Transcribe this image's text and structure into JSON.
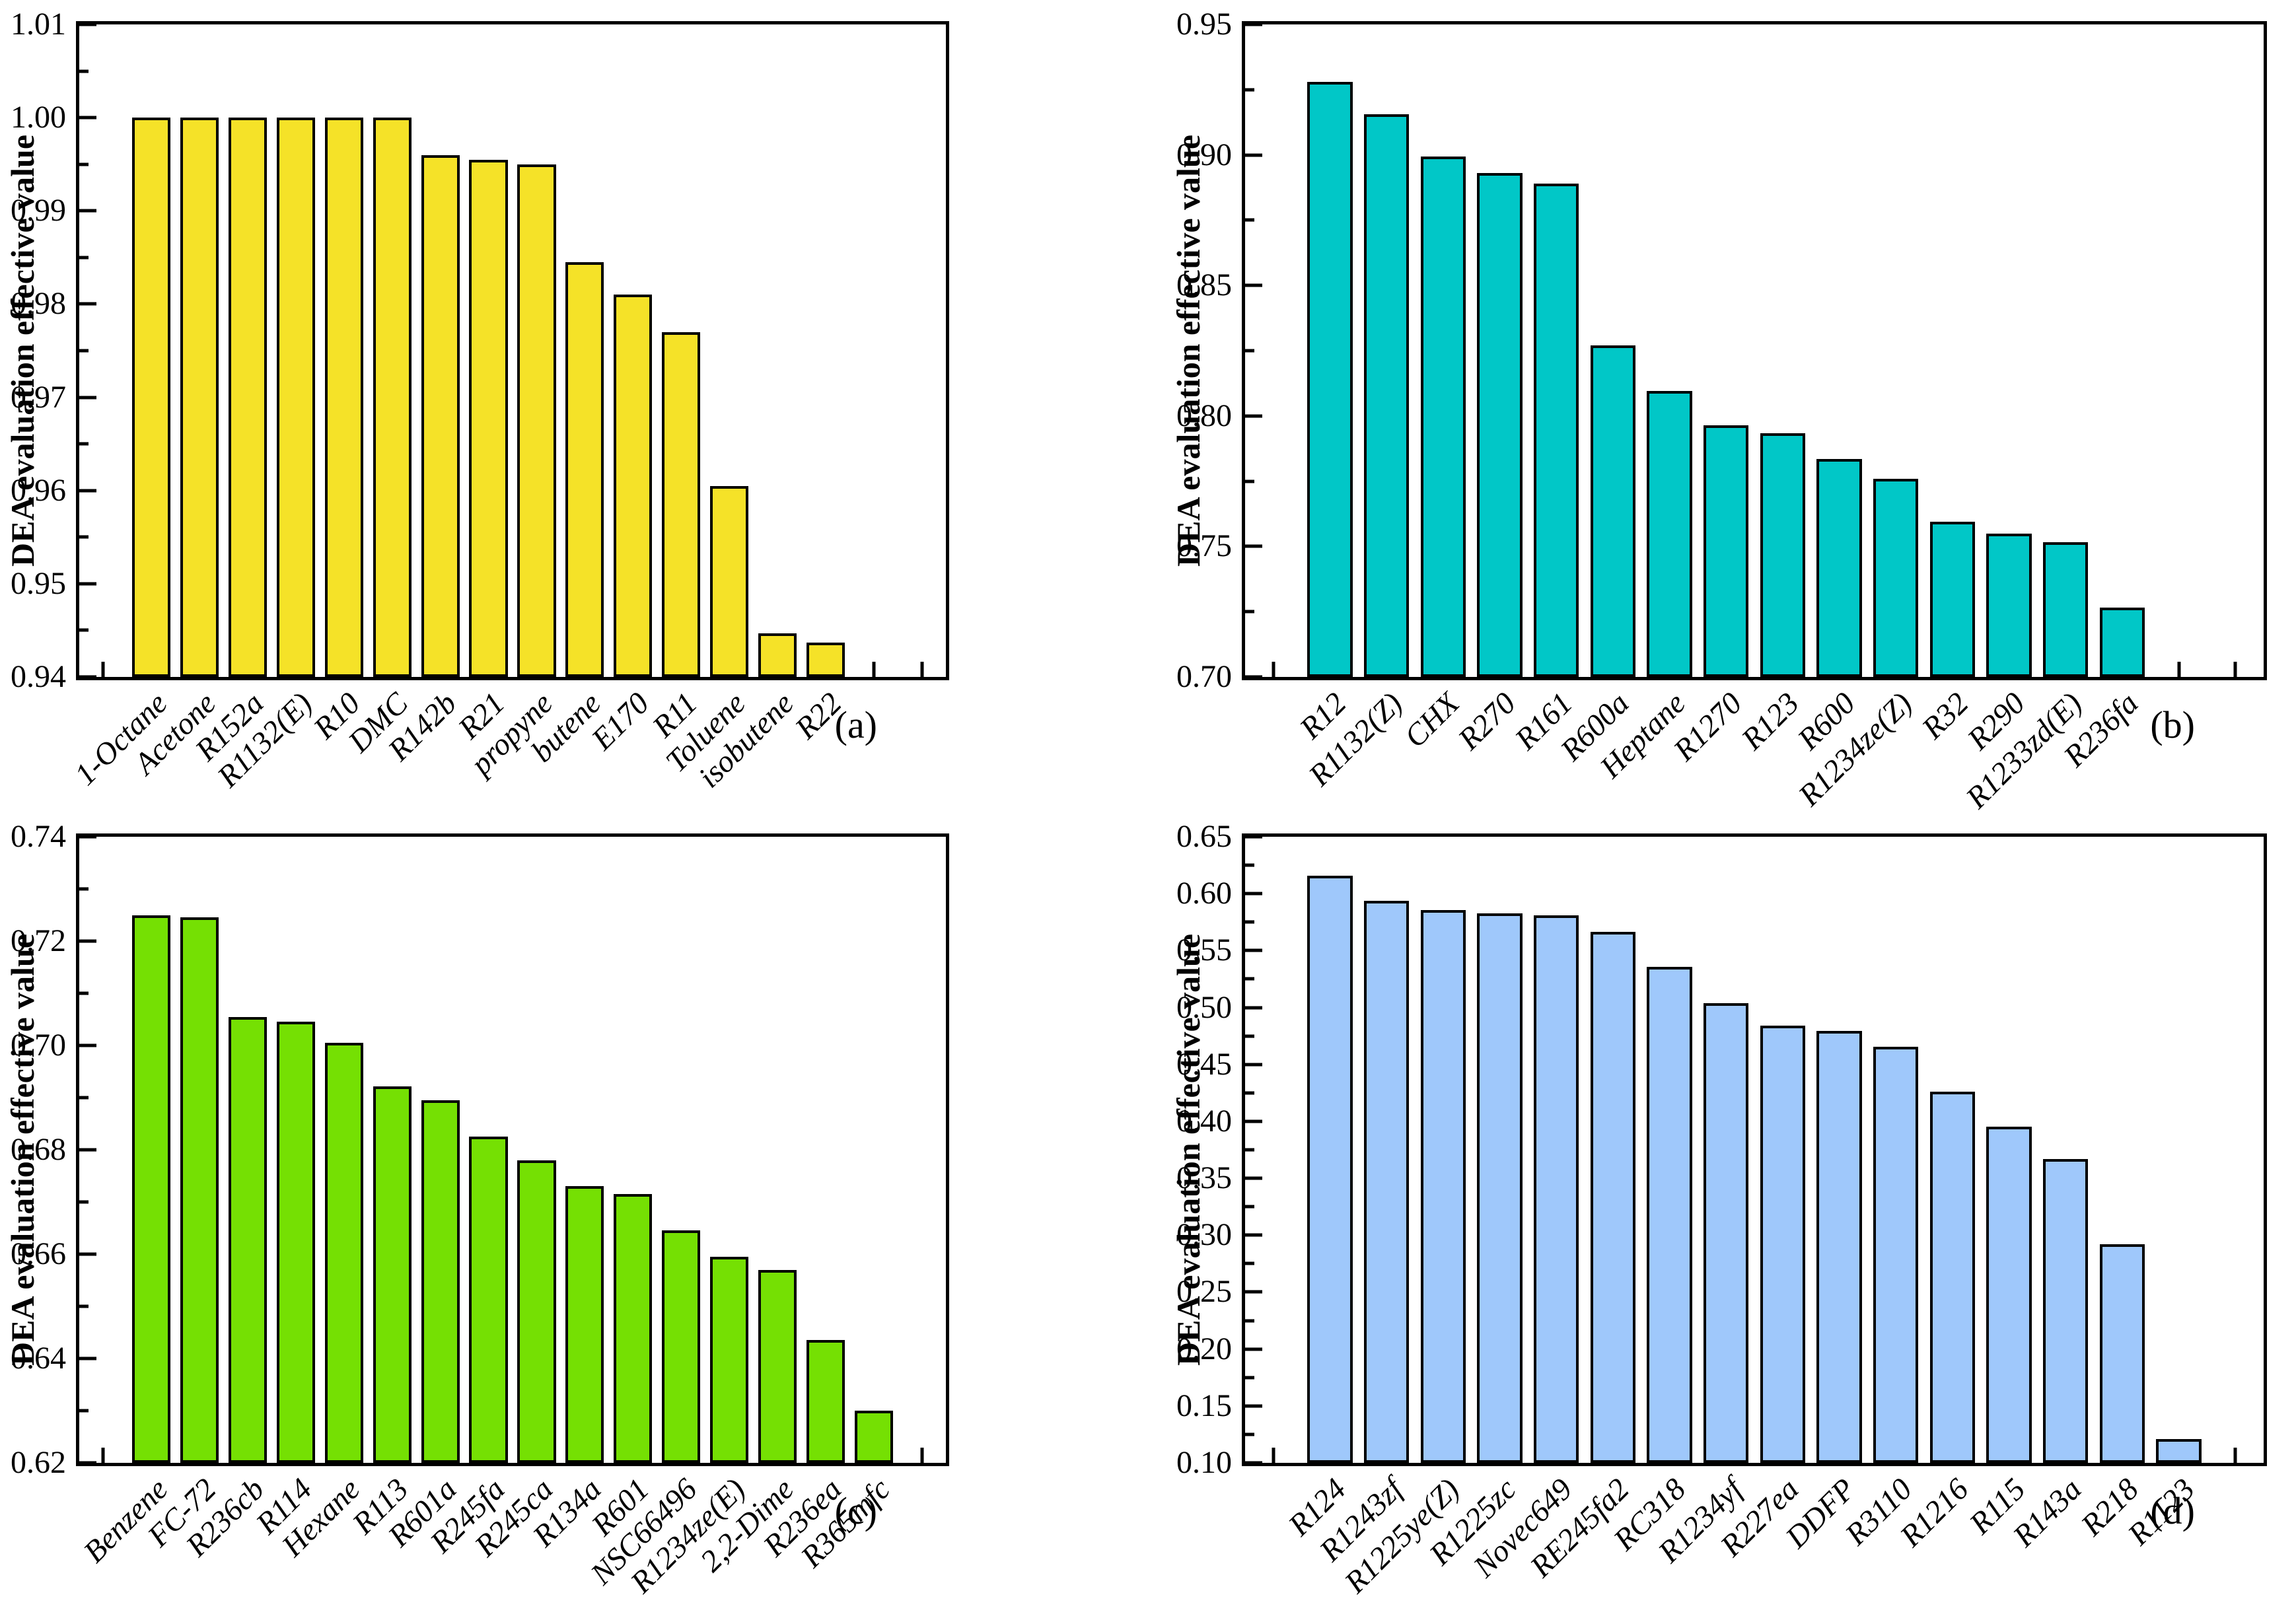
{
  "figure": {
    "ylabel": "DEA evaluation effective value"
  },
  "chart_data": [
    {
      "type": "bar",
      "panel": "a",
      "corner_label": "(a)",
      "bar_color": "#F5E228",
      "bar_border_color": "#000000",
      "ylabel": "DEA evaluation effective value",
      "ylim": [
        0.94,
        1.01
      ],
      "ytick_step": 0.01,
      "yticks": [
        "0.94",
        "0.95",
        "0.96",
        "0.97",
        "0.98",
        "0.99",
        "1.00",
        "1.01"
      ],
      "grid": "off",
      "legend": "none",
      "categories": [
        "1-Octane",
        "Acetone",
        "R152a",
        "R1132(E)",
        "R10",
        "DMC",
        "R142b",
        "R21",
        "propyne",
        "butene",
        "E170",
        "R11",
        "Toluene",
        "isobutene",
        "R22"
      ],
      "values": [
        1.0,
        1.0,
        1.0,
        1.0,
        1.0,
        1.0,
        0.996,
        0.9955,
        0.995,
        0.9845,
        0.981,
        0.977,
        0.9605,
        0.9447,
        0.9437
      ],
      "empty_slots_before": 1,
      "empty_slots_after": 2
    },
    {
      "type": "bar",
      "panel": "b",
      "corner_label": "(b)",
      "bar_color": "#01C7C7",
      "bar_border_color": "#000000",
      "ylabel": "DEA evaluation effective value",
      "ylim": [
        0.7,
        0.95
      ],
      "ytick_step": 0.05,
      "yticks": [
        "0.70",
        "0.75",
        "0.80",
        "0.85",
        "0.90",
        "0.95"
      ],
      "grid": "off",
      "legend": "none",
      "categories": [
        "R12",
        "R1132(Z)",
        "CHX",
        "R270",
        "R161",
        "R600a",
        "Heptane",
        "R1270",
        "R123",
        "R600",
        "R1234ze(Z)",
        "R32",
        "R290",
        "R1233zd(E)",
        "R236fa"
      ],
      "values": [
        0.928,
        0.9155,
        0.8995,
        0.893,
        0.889,
        0.827,
        0.8095,
        0.7965,
        0.7935,
        0.7835,
        0.776,
        0.7595,
        0.755,
        0.7515,
        0.7265
      ],
      "empty_slots_before": 1,
      "empty_slots_after": 2
    },
    {
      "type": "bar",
      "panel": "c",
      "corner_label": "(c)",
      "bar_color": "#75E003",
      "bar_border_color": "#000000",
      "ylabel": "DEA evaluation effective value",
      "ylim": [
        0.62,
        0.74
      ],
      "ytick_step": 0.02,
      "yticks": [
        "0.62",
        "0.64",
        "0.66",
        "0.68",
        "0.70",
        "0.72",
        "0.74"
      ],
      "grid": "off",
      "legend": "none",
      "categories": [
        "Benzene",
        "FC-72",
        "R236cb",
        "R114",
        "Hexane",
        "R113",
        "R601a",
        "R245fa",
        "R245ca",
        "R134a",
        "R601",
        "NSC66496",
        "R1234ze(E)",
        "2,2-Dime",
        "R236ea",
        "R365mfc"
      ],
      "values": [
        0.725,
        0.7245,
        0.7055,
        0.7045,
        0.7005,
        0.6922,
        0.6895,
        0.6825,
        0.678,
        0.673,
        0.6715,
        0.6645,
        0.6595,
        0.657,
        0.6435,
        0.63
      ],
      "empty_slots_before": 1,
      "empty_slots_after": 1
    },
    {
      "type": "bar",
      "panel": "d",
      "corner_label": "(d)",
      "bar_color": "#9FC8FB",
      "bar_border_color": "#000000",
      "ylabel": "DEA evaluation effective value",
      "ylim": [
        0.1,
        0.65
      ],
      "ytick_step": 0.05,
      "yticks": [
        "0.10",
        "0.15",
        "0.20",
        "0.25",
        "0.30",
        "0.35",
        "0.40",
        "0.45",
        "0.50",
        "0.55",
        "0.60",
        "0.65"
      ],
      "grid": "off",
      "legend": "none",
      "categories": [
        "R124",
        "R1243zf",
        "R1225ye(Z)",
        "R1225zc",
        "Novec649",
        "RE245fa2",
        "RC318",
        "R1234yf",
        "R227ea",
        "DDFP",
        "R3110",
        "R1216",
        "R115",
        "R143a",
        "R218",
        "R1123"
      ],
      "values": [
        0.616,
        0.594,
        0.5855,
        0.5825,
        0.581,
        0.5665,
        0.536,
        0.504,
        0.484,
        0.4795,
        0.4655,
        0.426,
        0.3955,
        0.367,
        0.292,
        0.121
      ],
      "empty_slots_before": 1,
      "empty_slots_after": 1
    }
  ]
}
